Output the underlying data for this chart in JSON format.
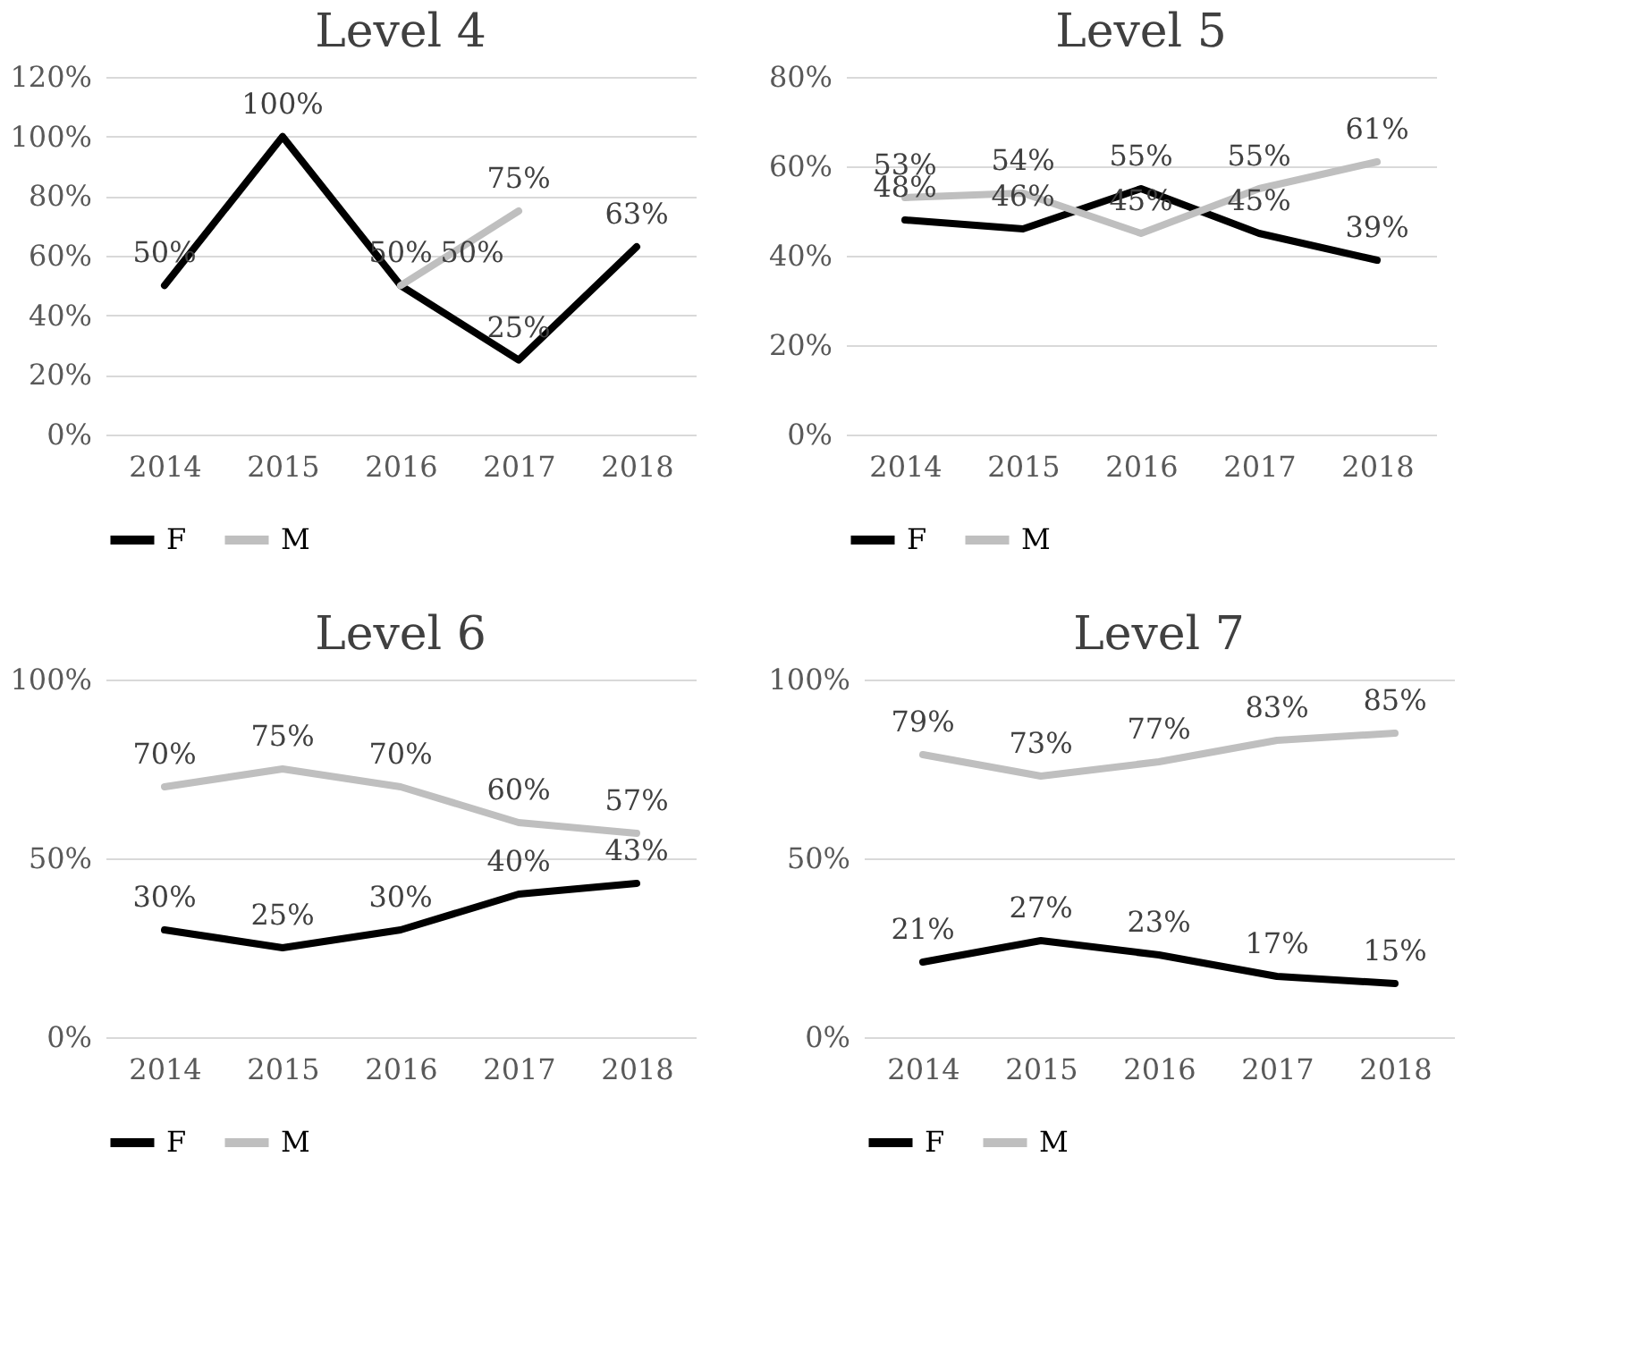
{
  "chart_data": [
    {
      "type": "line",
      "title": "Level 4",
      "categories": [
        "2014",
        "2015",
        "2016",
        "2017",
        "2018"
      ],
      "ylim": [
        0,
        120
      ],
      "yticks": [
        {
          "value": 0,
          "label": "0%"
        },
        {
          "value": 20,
          "label": "20%"
        },
        {
          "value": 40,
          "label": "40%"
        },
        {
          "value": 60,
          "label": "60%"
        },
        {
          "value": 80,
          "label": "80%"
        },
        {
          "value": 100,
          "label": "100%"
        },
        {
          "value": 120,
          "label": "120%"
        }
      ],
      "grid": "y",
      "legend": "bottom",
      "marker": "none",
      "series": [
        {
          "name": "F",
          "color": "#000000",
          "values": [
            50,
            100,
            50,
            25,
            63
          ],
          "value_labels": [
            "50%",
            "100%",
            "50%",
            "25%",
            "63%"
          ]
        },
        {
          "name": "M",
          "color": "#bfbfbf",
          "values": [
            null,
            null,
            50,
            75,
            null
          ],
          "value_labels": [
            null,
            null,
            "50%",
            "75%",
            null
          ]
        }
      ]
    },
    {
      "type": "line",
      "title": "Level 5",
      "categories": [
        "2014",
        "2015",
        "2016",
        "2017",
        "2018"
      ],
      "ylim": [
        0,
        80
      ],
      "yticks": [
        {
          "value": 0,
          "label": "0%"
        },
        {
          "value": 20,
          "label": "20%"
        },
        {
          "value": 40,
          "label": "40%"
        },
        {
          "value": 60,
          "label": "60%"
        },
        {
          "value": 80,
          "label": "80%"
        }
      ],
      "grid": "y",
      "legend": "bottom",
      "marker": "none",
      "series": [
        {
          "name": "F",
          "color": "#000000",
          "values": [
            48,
            46,
            55,
            45,
            39
          ],
          "value_labels": [
            "48%",
            "46%",
            "55%",
            "45%",
            "39%"
          ]
        },
        {
          "name": "M",
          "color": "#bfbfbf",
          "values": [
            53,
            54,
            45,
            55,
            61
          ],
          "value_labels": [
            "53%",
            "54%",
            "45%",
            "55%",
            "61%"
          ]
        }
      ]
    },
    {
      "type": "line",
      "title": "Level 6",
      "categories": [
        "2014",
        "2015",
        "2016",
        "2017",
        "2018"
      ],
      "ylim": [
        0,
        100
      ],
      "yticks": [
        {
          "value": 0,
          "label": "0%"
        },
        {
          "value": 50,
          "label": "50%"
        },
        {
          "value": 100,
          "label": "100%"
        }
      ],
      "grid": "y",
      "legend": "bottom",
      "marker": "none",
      "series": [
        {
          "name": "F",
          "color": "#000000",
          "values": [
            30,
            25,
            30,
            40,
            43
          ],
          "value_labels": [
            "30%",
            "25%",
            "30%",
            "40%",
            "43%"
          ]
        },
        {
          "name": "M",
          "color": "#bfbfbf",
          "values": [
            70,
            75,
            70,
            60,
            57
          ],
          "value_labels": [
            "70%",
            "75%",
            "70%",
            "60%",
            "57%"
          ]
        }
      ]
    },
    {
      "type": "line",
      "title": "Level 7",
      "categories": [
        "2014",
        "2015",
        "2016",
        "2017",
        "2018"
      ],
      "ylim": [
        0,
        100
      ],
      "yticks": [
        {
          "value": 0,
          "label": "0%"
        },
        {
          "value": 50,
          "label": "50%"
        },
        {
          "value": 100,
          "label": "100%"
        }
      ],
      "grid": "y",
      "legend": "bottom",
      "marker": "none",
      "series": [
        {
          "name": "F",
          "color": "#000000",
          "values": [
            21,
            27,
            23,
            17,
            15
          ],
          "value_labels": [
            "21%",
            "27%",
            "23%",
            "17%",
            "15%"
          ]
        },
        {
          "name": "M",
          "color": "#bfbfbf",
          "values": [
            79,
            73,
            77,
            83,
            85
          ],
          "value_labels": [
            "79%",
            "73%",
            "77%",
            "83%",
            "85%"
          ]
        }
      ]
    }
  ]
}
